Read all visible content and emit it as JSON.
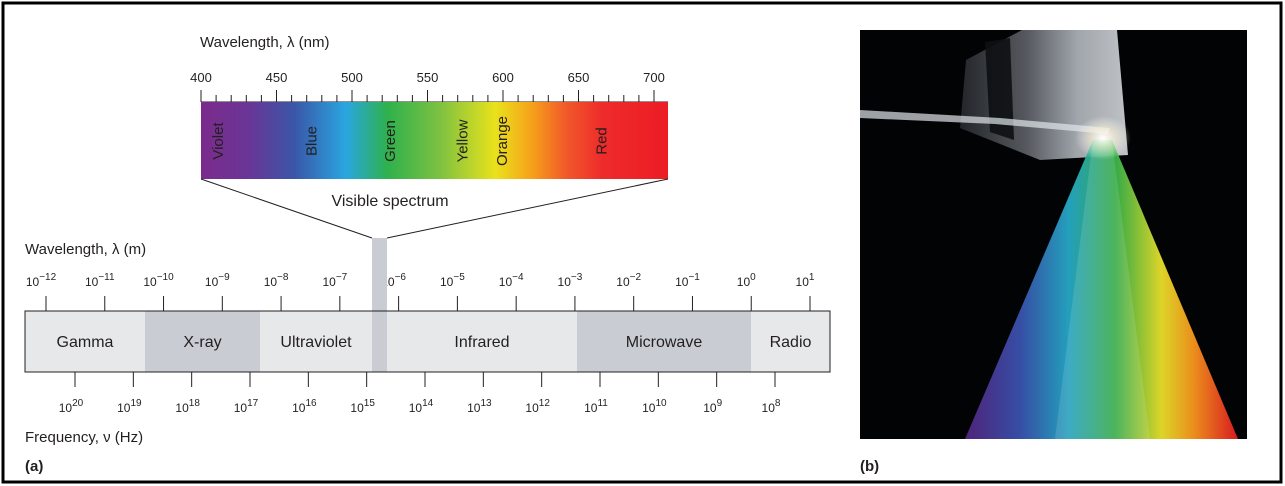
{
  "panels": {
    "a_label": "(a)",
    "b_label": "(b)"
  },
  "visible": {
    "axis_title": "Wavelength, λ (nm)",
    "ticks": [
      "400",
      "450",
      "500",
      "550",
      "600",
      "650",
      "700"
    ],
    "bands": [
      {
        "label": "Violet",
        "center_nm": 412
      },
      {
        "label": "Blue",
        "center_nm": 474
      },
      {
        "label": "Green",
        "center_nm": 526
      },
      {
        "label": "Yellow",
        "center_nm": 574
      },
      {
        "label": "Orange",
        "center_nm": 600
      },
      {
        "label": "Red",
        "center_nm": 666
      }
    ],
    "caption": "Visible spectrum"
  },
  "em": {
    "wavelength_title": "Wavelength, λ (m)",
    "wavelength_exponents": [
      "−12",
      "−11",
      "−10",
      "−9",
      "−8",
      "−7",
      "−6",
      "−5",
      "−4",
      "−3",
      "−2",
      "−1",
      "0",
      "1"
    ],
    "regions": [
      {
        "label": "Gamma",
        "shade": "#e7e8ea"
      },
      {
        "label": "X-ray",
        "shade": "#c9cdd3"
      },
      {
        "label": "Ultraviolet",
        "shade": "#e7e8ea"
      },
      {
        "label": "Infrared",
        "shade": "#e7e8ea"
      },
      {
        "label": "Microwave",
        "shade": "#c9cdd3"
      },
      {
        "label": "Radio",
        "shade": "#e7e8ea"
      }
    ],
    "visible_band_color": "#c9cdd3",
    "frequency_exponents": [
      "20",
      "19",
      "18",
      "17",
      "16",
      "15",
      "14",
      "13",
      "12",
      "11",
      "10",
      "9",
      "8"
    ],
    "frequency_title": "Frequency, ν (Hz)"
  },
  "spectrum_colors": [
    "#7d2a8c",
    "#5a3d9a",
    "#2e6bb8",
    "#27b3e6",
    "#31b04a",
    "#8cc63f",
    "#e6e21c",
    "#f7941d",
    "#ef4130",
    "#ed1c24"
  ],
  "photo": {
    "description_icon": "prism-dispersion-photo"
  }
}
